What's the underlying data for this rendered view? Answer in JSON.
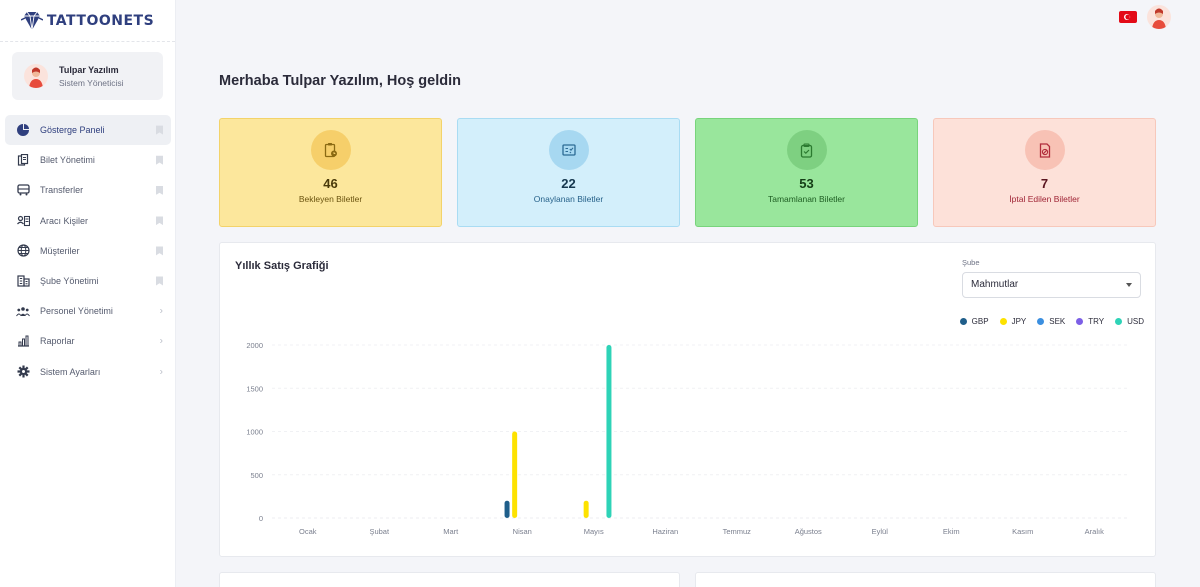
{
  "brand": {
    "name": "TATTOONETS"
  },
  "user": {
    "name": "Tulpar Yazılım",
    "role": "Sistem Yöneticisi"
  },
  "nav": [
    {
      "label": "Gösterge Paneli",
      "icon": "pie-chart-icon",
      "right": "bookmark",
      "active": true
    },
    {
      "label": "Bilet Yönetimi",
      "icon": "ticket-icon",
      "right": "bookmark"
    },
    {
      "label": "Transferler",
      "icon": "bus-icon",
      "right": "bookmark"
    },
    {
      "label": "Aracı Kişiler",
      "icon": "id-card-icon",
      "right": "bookmark"
    },
    {
      "label": "Müşteriler",
      "icon": "globe-icon",
      "right": "bookmark"
    },
    {
      "label": "Şube Yönetimi",
      "icon": "building-icon",
      "right": "bookmark"
    },
    {
      "label": "Personel Yönetimi",
      "icon": "users-icon",
      "right": "chevron"
    },
    {
      "label": "Raporlar",
      "icon": "bar-chart-icon",
      "right": "chevron"
    },
    {
      "label": "Sistem Ayarları",
      "icon": "gear-icon",
      "right": "chevron"
    }
  ],
  "header": {
    "language": "TR flag"
  },
  "greeting": "Merhaba Tulpar Yazılım, Hoş geldin",
  "stats": [
    {
      "value": "46",
      "label": "Bekleyen Biletler",
      "bg": "#fce79c",
      "border": "#f3d36a",
      "iconBg": "#f6cf6a",
      "iconColor": "#8a6a12",
      "textColor": "#6b5410",
      "numColor": "#4a3a0a",
      "icon": "clipboard-clock-icon"
    },
    {
      "value": "22",
      "label": "Onaylanan Biletler",
      "bg": "#d3effb",
      "border": "#a9dcf3",
      "iconBg": "#a7d8f1",
      "iconColor": "#2c6b95",
      "textColor": "#27628a",
      "numColor": "#17384f",
      "icon": "checklist-icon"
    },
    {
      "value": "53",
      "label": "Tamamlanan Biletler",
      "bg": "#99e69c",
      "border": "#78d47c",
      "iconBg": "#7ed081",
      "iconColor": "#2b7a30",
      "textColor": "#1f5e23",
      "numColor": "#143d16",
      "icon": "clipboard-check-icon"
    },
    {
      "value": "7",
      "label": "İptal Edilen Biletler",
      "bg": "#fde1d9",
      "border": "#f7c8bb",
      "iconBg": "#f8c2b5",
      "iconColor": "#b22d3c",
      "textColor": "#a02536",
      "numColor": "#5a1520",
      "icon": "document-cancel-icon"
    }
  ],
  "sales_panel": {
    "title": "Yıllık Satış Grafiği",
    "branch_label": "Şube",
    "branch_selected": "Mahmutlar"
  },
  "chart_data": {
    "type": "bar",
    "title": "Yıllık Satış Grafiği",
    "categories": [
      "Ocak",
      "Şubat",
      "Mart",
      "Nisan",
      "Mayıs",
      "Haziran",
      "Temmuz",
      "Ağustos",
      "Eylül",
      "Ekim",
      "Kasım",
      "Aralık"
    ],
    "yticks": [
      0,
      500,
      1000,
      1500,
      2000
    ],
    "ylim": [
      0,
      2000
    ],
    "legend_position": "top-right",
    "grid": true,
    "series": [
      {
        "name": "GBP",
        "color": "#1f5e8a",
        "values": [
          0,
          0,
          0,
          200,
          0,
          0,
          0,
          0,
          0,
          0,
          0,
          0
        ]
      },
      {
        "name": "JPY",
        "color": "#fde200",
        "values": [
          0,
          0,
          0,
          1000,
          200,
          0,
          0,
          0,
          0,
          0,
          0,
          0
        ]
      },
      {
        "name": "SEK",
        "color": "#3b8fe0",
        "values": [
          0,
          0,
          0,
          0,
          0,
          0,
          0,
          0,
          0,
          0,
          0,
          0
        ]
      },
      {
        "name": "TRY",
        "color": "#7c5fe6",
        "values": [
          0,
          0,
          0,
          0,
          0,
          0,
          0,
          0,
          0,
          0,
          0,
          0
        ]
      },
      {
        "name": "USD",
        "color": "#2ed3b7",
        "values": [
          0,
          0,
          0,
          0,
          2000,
          0,
          0,
          0,
          0,
          0,
          0,
          0
        ]
      }
    ]
  }
}
